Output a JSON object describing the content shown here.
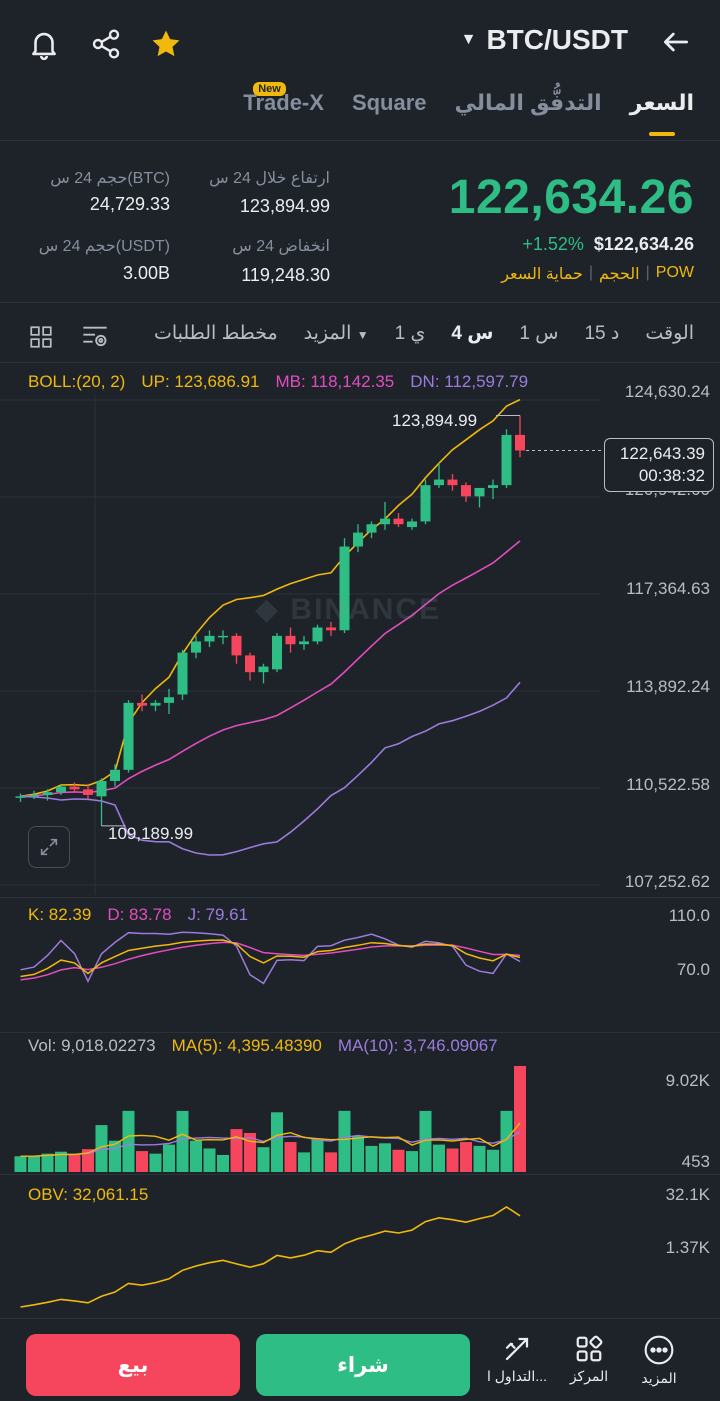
{
  "header": {
    "pair": "BTC/USDT",
    "icons": [
      "arrow-left-icon",
      "bell-icon",
      "share-icon",
      "star-icon"
    ]
  },
  "tabs": [
    {
      "label": "السعر",
      "active": true
    },
    {
      "label": "التدفُّق المالي"
    },
    {
      "label": "Square"
    },
    {
      "label": "Trade-X",
      "badge": "New"
    }
  ],
  "ticker": {
    "last_price": "122,634.26",
    "change_pct": "+1.52%",
    "usd_price": "$122,634.26",
    "tags": [
      "POW",
      "الحجم",
      "حماية السعر"
    ],
    "high_label": "ارتفاع خلال 24 س",
    "high_value": "123,894.99",
    "low_label": "انخفاض 24 س",
    "low_value": "119,248.30",
    "vol_btc_label": "حجم 24 س(BTC)",
    "vol_btc_value": "24,729.33",
    "vol_usdt_label": "حجم 24 س(USDT)",
    "vol_usdt_value": "3.00B"
  },
  "timeframes": {
    "time_label": "الوقت",
    "options": [
      "15 د",
      "1 س",
      "4 س",
      "1 ي"
    ],
    "active": "4 س",
    "more": "المزيد",
    "depth": "مخطط الطلبات"
  },
  "boll": {
    "label": "BOLL:(20, 2)",
    "up": "UP: 123,686.91",
    "mb": "MB: 118,142.35",
    "dn": "DN: 112,597.79"
  },
  "chart_data": {
    "type": "candlestick",
    "price_axis": [
      "124,630.24",
      "120,942.00",
      "117,364.63",
      "113,892.24",
      "110,522.58",
      "107,252.62"
    ],
    "high_marker": "123,894.99",
    "low_marker": "109,189.99",
    "current_price": "122,643.39",
    "countdown": "00:38:32",
    "watermark": "BINANCE",
    "candles": [
      {
        "o": 110200,
        "h": 110350,
        "l": 110050,
        "c": 110250
      },
      {
        "o": 110250,
        "h": 110450,
        "l": 110150,
        "c": 110300
      },
      {
        "o": 110300,
        "h": 110500,
        "l": 110100,
        "c": 110400
      },
      {
        "o": 110400,
        "h": 110650,
        "l": 110300,
        "c": 110600
      },
      {
        "o": 110600,
        "h": 110750,
        "l": 110400,
        "c": 110500
      },
      {
        "o": 110500,
        "h": 110700,
        "l": 110150,
        "c": 110300
      },
      {
        "o": 110250,
        "h": 110900,
        "l": 109190,
        "c": 110800
      },
      {
        "o": 110800,
        "h": 111400,
        "l": 110600,
        "c": 111200
      },
      {
        "o": 111200,
        "h": 113700,
        "l": 111100,
        "c": 113600
      },
      {
        "o": 113600,
        "h": 113900,
        "l": 113300,
        "c": 113500
      },
      {
        "o": 113500,
        "h": 113700,
        "l": 113300,
        "c": 113600
      },
      {
        "o": 113600,
        "h": 114100,
        "l": 113200,
        "c": 113800
      },
      {
        "o": 113900,
        "h": 115500,
        "l": 113700,
        "c": 115400
      },
      {
        "o": 115400,
        "h": 116000,
        "l": 115200,
        "c": 115800
      },
      {
        "o": 115800,
        "h": 116200,
        "l": 115600,
        "c": 116000
      },
      {
        "o": 116000,
        "h": 116200,
        "l": 115700,
        "c": 116000
      },
      {
        "o": 116000,
        "h": 116100,
        "l": 115000,
        "c": 115300
      },
      {
        "o": 115300,
        "h": 115400,
        "l": 114400,
        "c": 114700
      },
      {
        "o": 114700,
        "h": 115000,
        "l": 114300,
        "c": 114900
      },
      {
        "o": 114800,
        "h": 116100,
        "l": 114700,
        "c": 116000
      },
      {
        "o": 116000,
        "h": 116300,
        "l": 115400,
        "c": 115700
      },
      {
        "o": 115700,
        "h": 116000,
        "l": 115500,
        "c": 115800
      },
      {
        "o": 115800,
        "h": 116400,
        "l": 115700,
        "c": 116300
      },
      {
        "o": 116300,
        "h": 116500,
        "l": 116000,
        "c": 116200
      },
      {
        "o": 116200,
        "h": 119500,
        "l": 116100,
        "c": 119200
      },
      {
        "o": 119200,
        "h": 120000,
        "l": 119000,
        "c": 119700
      },
      {
        "o": 119700,
        "h": 120100,
        "l": 119500,
        "c": 120000
      },
      {
        "o": 120000,
        "h": 120800,
        "l": 119800,
        "c": 120200
      },
      {
        "o": 120200,
        "h": 120400,
        "l": 119900,
        "c": 120000
      },
      {
        "o": 119900,
        "h": 120200,
        "l": 119800,
        "c": 120100
      },
      {
        "o": 120100,
        "h": 121600,
        "l": 120000,
        "c": 121400
      },
      {
        "o": 121400,
        "h": 122200,
        "l": 121300,
        "c": 121600
      },
      {
        "o": 121600,
        "h": 121800,
        "l": 121200,
        "c": 121400
      },
      {
        "o": 121400,
        "h": 121500,
        "l": 120800,
        "c": 121000
      },
      {
        "o": 121000,
        "h": 121200,
        "l": 120600,
        "c": 121300
      },
      {
        "o": 121300,
        "h": 121600,
        "l": 120900,
        "c": 121400
      },
      {
        "o": 121400,
        "h": 123400,
        "l": 121300,
        "c": 123200
      },
      {
        "o": 123200,
        "h": 123895,
        "l": 122400,
        "c": 122643
      }
    ]
  },
  "kdj": {
    "k": "K: 82.39",
    "d": "D: 83.78",
    "j": "J: 79.61",
    "axis": [
      "110.0",
      "70.0"
    ]
  },
  "volume": {
    "vol": "Vol: 9,018.02273",
    "ma5": "MA(5): 4,395.48390",
    "ma10": "MA(10): 3,746.09067",
    "axis": [
      "9.02K",
      "453"
    ]
  },
  "obv": {
    "label": "OBV: 32,061.15",
    "axis": [
      "32.1K",
      "1.37K"
    ]
  },
  "bottom": {
    "buy": "شراء",
    "sell": "بيع",
    "more": "المزيد",
    "center": "المركز",
    "trading": "التداول ا..."
  },
  "colors": {
    "up": "#2ebd85",
    "down": "#f6465d",
    "accent": "#f0b90b",
    "boll_up": "#f0b90b",
    "boll_mb": "#e14dc0",
    "boll_dn": "#9b7bdc"
  }
}
